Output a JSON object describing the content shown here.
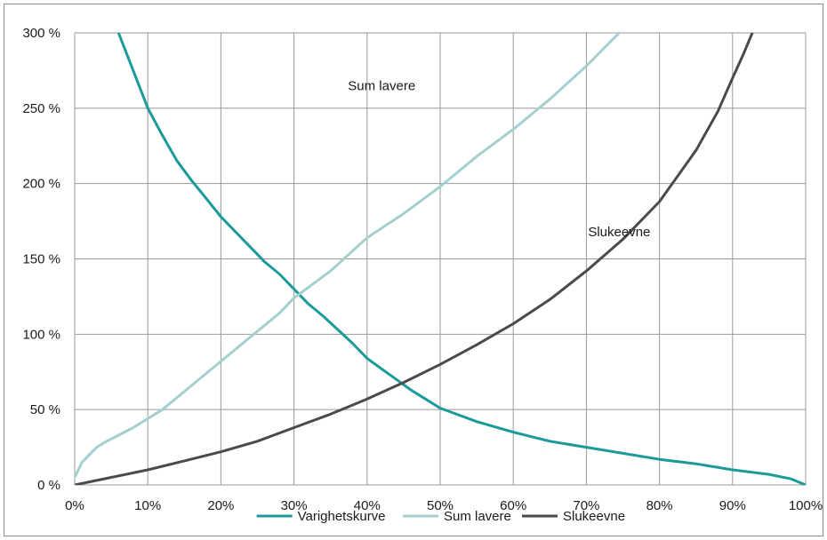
{
  "chart_data": {
    "type": "line",
    "title": "",
    "xlabel": "",
    "ylabel": "",
    "xlim": [
      0,
      100
    ],
    "ylim": [
      0,
      300
    ],
    "grid": true,
    "legend_position": "bottom",
    "x_tick_labels": [
      "0%",
      "10%",
      "20%",
      "30%",
      "40%",
      "50%",
      "60%",
      "70%",
      "80%",
      "90%",
      "100%"
    ],
    "y_tick_labels": [
      "0 %",
      "50 %",
      "100 %",
      "150 %",
      "200 %",
      "250 %",
      "300 %"
    ],
    "series": [
      {
        "name": "Varighetskurve",
        "color": "#1b9a9a",
        "x": [
          6,
          8,
          10,
          12,
          14,
          16,
          18,
          20,
          22,
          24,
          26,
          28,
          30,
          32,
          34,
          36,
          38,
          40,
          42,
          44,
          46,
          48,
          50,
          55,
          60,
          65,
          70,
          75,
          80,
          85,
          90,
          95,
          98,
          100
        ],
        "y": [
          300,
          275,
          250,
          232,
          215,
          202,
          190,
          178,
          168,
          158,
          148,
          140,
          130,
          120,
          112,
          103,
          94,
          84,
          77,
          70,
          63,
          57,
          51,
          42,
          35,
          29,
          25,
          21,
          17,
          14,
          10,
          7,
          4,
          0
        ]
      },
      {
        "name": "Sum lavere",
        "color": "#a4cfcf",
        "x": [
          0,
          1,
          2,
          3,
          4,
          6,
          8,
          10,
          12,
          14,
          16,
          18,
          20,
          22,
          24,
          26,
          28,
          30,
          35,
          40,
          45,
          50,
          55,
          60,
          65,
          70,
          74.5
        ],
        "y": [
          5,
          15,
          20,
          25,
          28,
          33,
          38,
          44,
          50,
          58,
          66,
          74,
          82,
          90,
          98,
          106,
          114,
          124,
          142,
          164,
          180,
          198,
          218,
          236,
          256,
          278,
          300
        ]
      },
      {
        "name": "Slukeevne",
        "color": "#4a4a4a",
        "x": [
          0,
          5,
          10,
          15,
          20,
          25,
          30,
          35,
          40,
          45,
          50,
          55,
          60,
          65,
          70,
          75,
          80,
          85,
          88,
          90,
          91.5,
          92.7
        ],
        "y": [
          0,
          5,
          10,
          16,
          22,
          29,
          38,
          47,
          57,
          68,
          80,
          93,
          107,
          123,
          142,
          163,
          188,
          222,
          248,
          270,
          286,
          300
        ]
      }
    ],
    "annotations": [
      {
        "text": "Sum lavere",
        "x": 42,
        "y": 262
      },
      {
        "text": "Slukeevne",
        "x": 74.5,
        "y": 165
      }
    ]
  }
}
